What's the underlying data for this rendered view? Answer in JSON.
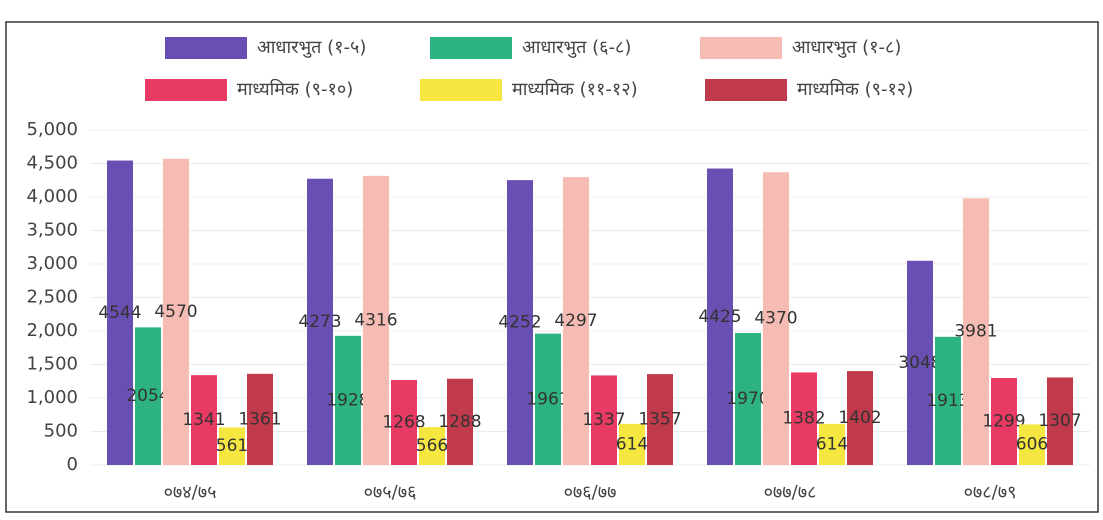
{
  "chart_data": {
    "type": "bar",
    "categories": [
      "०७४/७५",
      "०७५/७६",
      "०७६/७७",
      "०७७/७८",
      "०७८/७९"
    ],
    "series": [
      {
        "name": "आधारभुत (१-५)",
        "color": "#6a4fb3",
        "values": [
          4544,
          4273,
          4252,
          4425,
          3048
        ]
      },
      {
        "name": "आधारभुत (६-८)",
        "color": "#2db37f",
        "values": [
          2054,
          1928,
          1961,
          1970,
          1913
        ]
      },
      {
        "name": "आधारभुत (१-८)",
        "color": "#f6bcb3",
        "values": [
          4570,
          4316,
          4297,
          4370,
          3981
        ]
      },
      {
        "name": "माध्यमिक (९-१०)",
        "color": "#e83a62",
        "values": [
          1341,
          1268,
          1337,
          1382,
          1299
        ]
      },
      {
        "name": "माध्यमिक (११-१२)",
        "color": "#f6e640",
        "values": [
          561,
          566,
          614,
          614,
          606
        ]
      },
      {
        "name": "माध्यमिक (९-१२)",
        "color": "#c03a4c",
        "values": [
          1361,
          1288,
          1357,
          1402,
          1307
        ]
      }
    ],
    "ylim": [
      0,
      5000
    ],
    "yticks": [
      0,
      500,
      {
        "value": 1000,
        "label": "1,000"
      },
      {
        "value": 1500,
        "label": "1,500"
      },
      {
        "value": 2000,
        "label": "2,000"
      },
      {
        "value": 2500,
        "label": "2,500"
      },
      {
        "value": 3000,
        "label": "3,000"
      },
      {
        "value": 3500,
        "label": "3,500"
      },
      {
        "value": 4000,
        "label": "4,000"
      },
      {
        "value": 4500,
        "label": "4,500"
      },
      {
        "value": 5000,
        "label": "5,000"
      }
    ],
    "grid": true
  }
}
